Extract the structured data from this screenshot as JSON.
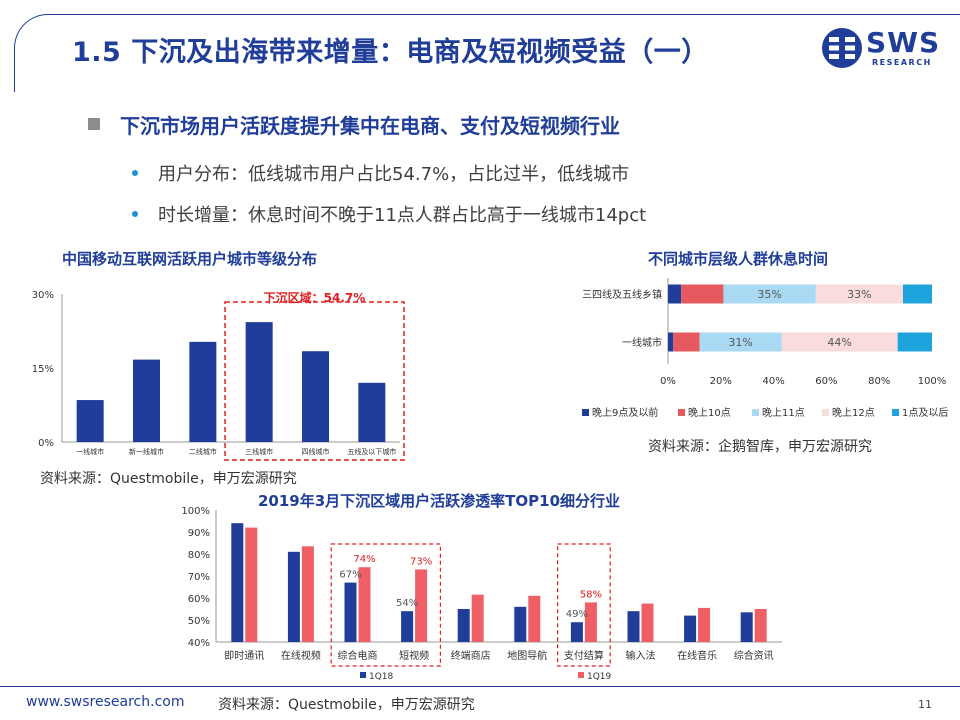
{
  "header": {
    "title": "1.5 下沉及出海带来增量：电商及短视频受益（一）",
    "logo_text": "SWS",
    "logo_sub": "RESEARCH"
  },
  "section": {
    "heading": "下沉市场用户活跃度提升集中在电商、支付及短视频行业",
    "bullets": [
      "用户分布：低线城市用户占比54.7%，占比过半，低线城市",
      "时长增量：休息时间不晚于11点人群占比高于一线城市14pct"
    ]
  },
  "chart_data": [
    {
      "id": "city-tier",
      "type": "bar",
      "title": "中国移动互联网活跃用户城市等级分布",
      "categories": [
        "一线城市",
        "新一线城市",
        "二线城市",
        "三线城市",
        "四线城市",
        "五线及以下城市"
      ],
      "values": [
        8.5,
        16.7,
        20.3,
        24.3,
        18.4,
        12.0
      ],
      "ylim": [
        0,
        30
      ],
      "yticks": [
        "0%",
        "15%",
        "30%"
      ],
      "annotation": "下沉区域：54.7%",
      "bar_color": "#1f3d99",
      "source": "资料来源：Questmobile，申万宏源研究"
    },
    {
      "id": "rest-time",
      "type": "bar",
      "orientation": "horizontal-stacked-100",
      "title": "不同城市层级人群休息时间",
      "categories": [
        "三四线及五线乡镇",
        "一线城市"
      ],
      "series": [
        {
          "name": "晚上9点及以前",
          "values": [
            5,
            2
          ],
          "color": "#1f3d99"
        },
        {
          "name": "晚上10点",
          "values": [
            16,
            10
          ],
          "color": "#e65a5f"
        },
        {
          "name": "晚上11点",
          "values": [
            35,
            31
          ],
          "color": "#a9d9f3"
        },
        {
          "name": "晚上12点",
          "values": [
            33,
            44
          ],
          "color": "#f9dcdc"
        },
        {
          "name": "1点及以后",
          "values": [
            11,
            13
          ],
          "color": "#1fa3dd"
        }
      ],
      "data_labels": [
        [
          "",
          "",
          "35%",
          "33%",
          ""
        ],
        [
          "",
          "",
          "31%",
          "44%",
          ""
        ]
      ],
      "xticks": [
        "0%",
        "20%",
        "40%",
        "60%",
        "80%",
        "100%"
      ],
      "legend_position": "bottom",
      "source": "资料来源：企鹅智库，申万宏源研究"
    },
    {
      "id": "top10-industry",
      "type": "bar",
      "title": "2019年3月下沉区域用户活跃渗透率TOP10细分行业",
      "categories": [
        "即时通讯",
        "在线视频",
        "综合电商",
        "短视频",
        "终端商店",
        "地图导航",
        "支付结算",
        "输入法",
        "在线音乐",
        "综合资讯"
      ],
      "series": [
        {
          "name": "1Q18",
          "values": [
            94,
            81,
            67,
            54,
            55,
            56,
            49,
            54,
            52,
            53.5
          ],
          "color": "#1f3d99"
        },
        {
          "name": "1Q19",
          "values": [
            92,
            83.5,
            74,
            73,
            61.5,
            61,
            58,
            57.5,
            55.5,
            55
          ],
          "color": "#ef5f66"
        }
      ],
      "data_labels": [
        {
          "category": "综合电商",
          "series": "1Q18",
          "text": "67%"
        },
        {
          "category": "综合电商",
          "series": "1Q19",
          "text": "74%"
        },
        {
          "category": "短视频",
          "series": "1Q18",
          "text": "54%"
        },
        {
          "category": "短视频",
          "series": "1Q19",
          "text": "73%"
        },
        {
          "category": "支付结算",
          "series": "1Q18",
          "text": "49%"
        },
        {
          "category": "支付结算",
          "series": "1Q19",
          "text": "58%"
        }
      ],
      "ylim": [
        40,
        100
      ],
      "yticks": [
        "40%",
        "50%",
        "60%",
        "70%",
        "80%",
        "90%",
        "100%"
      ],
      "highlight_categories": [
        [
          "综合电商",
          "短视频"
        ],
        [
          "支付结算"
        ]
      ],
      "legend_position": "bottom",
      "source": "资料来源：Questmobile，申万宏源研究"
    }
  ],
  "footer": {
    "url": "www.swsresearch.com",
    "page": "11"
  }
}
